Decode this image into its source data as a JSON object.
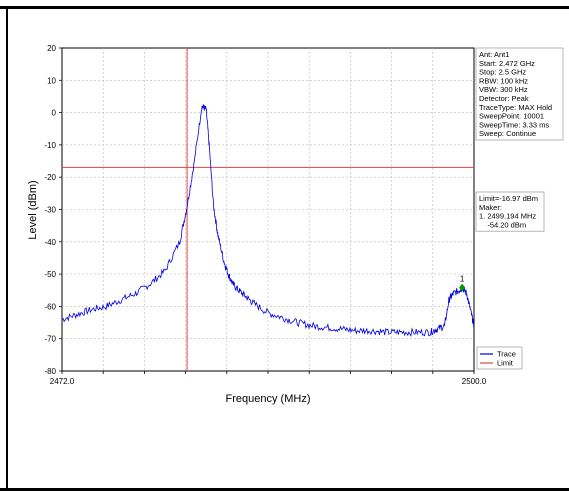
{
  "chart_data": {
    "type": "line",
    "xlabel": "Frequency (MHz)",
    "ylabel": "Level (dBm)",
    "xlim": [
      2472.0,
      2500.0
    ],
    "ylim": [
      -80,
      20
    ],
    "x_tick_labels": [
      "2472.0",
      "2500.0"
    ],
    "y_ticks": [
      20,
      10,
      0,
      -10,
      -20,
      -30,
      -40,
      -50,
      -60,
      -70,
      -80
    ],
    "grid": true,
    "series": [
      {
        "name": "Trace",
        "color": "#0000dd",
        "x": [
          2472.0,
          2473.0,
          2474.0,
          2475.0,
          2476.0,
          2477.0,
          2478.0,
          2479.0,
          2480.0,
          2480.5,
          2481.0,
          2481.5,
          2481.8,
          2482.0,
          2482.3,
          2482.6,
          2483.0,
          2483.3,
          2483.6,
          2484.0,
          2484.5,
          2485.0,
          2486.0,
          2487.0,
          2488.0,
          2489.0,
          2490.0,
          2491.0,
          2492.0,
          2493.0,
          2494.0,
          2495.0,
          2496.0,
          2497.0,
          2497.5,
          2498.0,
          2498.3,
          2498.6,
          2499.0,
          2499.2,
          2499.5,
          2499.8,
          2500.0
        ],
        "y": [
          -64,
          -62.5,
          -61,
          -60,
          -58,
          -56,
          -53,
          -49,
          -40,
          -29,
          -15,
          2,
          1,
          -10,
          -29,
          -38,
          -46,
          -50,
          -53,
          -55,
          -57,
          -59,
          -62,
          -63.5,
          -65,
          -66,
          -66.5,
          -67,
          -67.5,
          -67.5,
          -68,
          -68,
          -68,
          -68,
          -67,
          -66,
          -58,
          -56,
          -55,
          -54.2,
          -56,
          -62,
          -66
        ]
      }
    ],
    "limit": {
      "name": "Limit",
      "value": -16.97,
      "color": "#e04040"
    },
    "cursor_x": 2480.5,
    "marker": {
      "label": "1",
      "x": 2499.194,
      "y": -54.2,
      "color": "#009900"
    },
    "legend_position": "bottom-right",
    "legend_entries": [
      "Trace",
      "Limit"
    ],
    "info_box": [
      "Ant: Ant1",
      "Start: 2.472 GHz",
      "Stop: 2.5 GHz",
      "RBW: 100 kHz",
      "VBW: 300 kHz",
      "Detector: Peak",
      "TraceType: MAX Hold",
      "SweepPoint: 10001",
      "SweepTime: 3.33 ms",
      "Sweep: Continue"
    ],
    "marker_box": [
      "Limit=-16.97 dBm",
      "Maker:",
      "1. 2499.194 MHz",
      "    -54.20 dBm"
    ]
  }
}
